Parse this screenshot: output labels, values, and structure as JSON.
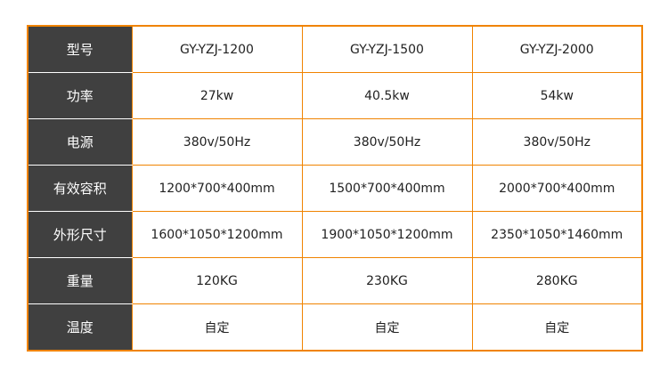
{
  "colors": {
    "border": "#f08300",
    "header_bg": "#404040"
  },
  "rows": [
    {
      "label": "型号",
      "values": [
        "GY-YZJ-1200",
        "GY-YZJ-1500",
        "GY-YZJ-2000"
      ]
    },
    {
      "label": "功率",
      "values": [
        "27kw",
        "40.5kw",
        "54kw"
      ]
    },
    {
      "label": "电源",
      "values": [
        "380v/50Hz",
        "380v/50Hz",
        "380v/50Hz"
      ]
    },
    {
      "label": "有效容积",
      "values": [
        "1200*700*400mm",
        "1500*700*400mm",
        "2000*700*400mm"
      ]
    },
    {
      "label": "外形尺寸",
      "values": [
        "1600*1050*1200mm",
        "1900*1050*1200mm",
        "2350*1050*1460mm"
      ]
    },
    {
      "label": "重量",
      "values": [
        "120KG",
        "230KG",
        "280KG"
      ]
    },
    {
      "label": "温度",
      "values": [
        "自定",
        "自定",
        "自定"
      ]
    }
  ]
}
